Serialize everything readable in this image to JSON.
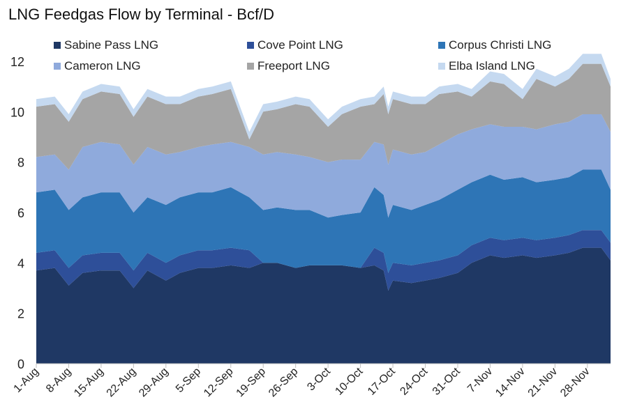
{
  "chart_data": {
    "type": "area",
    "stacked": true,
    "title": "LNG Feedgas Flow by Terminal - Bcf/D",
    "xlabel": "",
    "ylabel": "",
    "ylim": [
      0,
      12
    ],
    "yticks": [
      0,
      2,
      4,
      6,
      8,
      10,
      12
    ],
    "xlim": [
      "1-Aug",
      "3-Dec"
    ],
    "x_tick_labels": [
      "1-Aug",
      "8-Aug",
      "15-Aug",
      "22-Aug",
      "29-Aug",
      "5-Sep",
      "12-Sep",
      "19-Sep",
      "26-Sep",
      "3-Oct",
      "10-Oct",
      "17-Oct",
      "24-Oct",
      "31-Oct",
      "7-Nov",
      "14-Nov",
      "21-Nov",
      "28-Nov"
    ],
    "grid": false,
    "legend_placement": "top",
    "series": [
      {
        "name": "Sabine Pass LNG",
        "color": "#1f3864",
        "points": [
          [
            "1-Aug",
            3.7
          ],
          [
            "5-Aug",
            3.8
          ],
          [
            "8-Aug",
            3.1
          ],
          [
            "11-Aug",
            3.6
          ],
          [
            "15-Aug",
            3.7
          ],
          [
            "19-Aug",
            3.7
          ],
          [
            "22-Aug",
            3.0
          ],
          [
            "25-Aug",
            3.7
          ],
          [
            "29-Aug",
            3.3
          ],
          [
            "1-Sep",
            3.6
          ],
          [
            "5-Sep",
            3.8
          ],
          [
            "8-Sep",
            3.8
          ],
          [
            "12-Sep",
            3.9
          ],
          [
            "16-Sep",
            3.8
          ],
          [
            "19-Sep",
            4.0
          ],
          [
            "22-Sep",
            4.0
          ],
          [
            "26-Sep",
            3.8
          ],
          [
            "29-Sep",
            3.9
          ],
          [
            "3-Oct",
            3.9
          ],
          [
            "6-Oct",
            3.9
          ],
          [
            "10-Oct",
            3.8
          ],
          [
            "13-Oct",
            3.9
          ],
          [
            "15-Oct",
            3.7
          ],
          [
            "16-Oct",
            2.9
          ],
          [
            "17-Oct",
            3.3
          ],
          [
            "21-Oct",
            3.2
          ],
          [
            "24-Oct",
            3.3
          ],
          [
            "27-Oct",
            3.4
          ],
          [
            "31-Oct",
            3.6
          ],
          [
            "3-Nov",
            4.0
          ],
          [
            "7-Nov",
            4.3
          ],
          [
            "10-Nov",
            4.2
          ],
          [
            "14-Nov",
            4.3
          ],
          [
            "17-Nov",
            4.2
          ],
          [
            "21-Nov",
            4.3
          ],
          [
            "24-Nov",
            4.4
          ],
          [
            "27-Nov",
            4.6
          ],
          [
            "1-Dec",
            4.6
          ],
          [
            "3-Dec",
            4.1
          ]
        ]
      },
      {
        "name": "Cove Point LNG",
        "color": "#2e4f99",
        "points": [
          [
            "1-Aug",
            0.7
          ],
          [
            "5-Aug",
            0.7
          ],
          [
            "8-Aug",
            0.7
          ],
          [
            "11-Aug",
            0.7
          ],
          [
            "15-Aug",
            0.7
          ],
          [
            "19-Aug",
            0.7
          ],
          [
            "22-Aug",
            0.7
          ],
          [
            "25-Aug",
            0.7
          ],
          [
            "29-Aug",
            0.7
          ],
          [
            "1-Sep",
            0.7
          ],
          [
            "5-Sep",
            0.7
          ],
          [
            "8-Sep",
            0.7
          ],
          [
            "12-Sep",
            0.7
          ],
          [
            "16-Sep",
            0.7
          ],
          [
            "19-Sep",
            0.0
          ],
          [
            "22-Sep",
            0.0
          ],
          [
            "26-Sep",
            0.0
          ],
          [
            "29-Sep",
            0.0
          ],
          [
            "3-Oct",
            0.0
          ],
          [
            "6-Oct",
            0.0
          ],
          [
            "10-Oct",
            0.0
          ],
          [
            "13-Oct",
            0.7
          ],
          [
            "15-Oct",
            0.7
          ],
          [
            "16-Oct",
            0.7
          ],
          [
            "17-Oct",
            0.7
          ],
          [
            "21-Oct",
            0.7
          ],
          [
            "24-Oct",
            0.7
          ],
          [
            "27-Oct",
            0.7
          ],
          [
            "31-Oct",
            0.7
          ],
          [
            "3-Nov",
            0.7
          ],
          [
            "7-Nov",
            0.7
          ],
          [
            "10-Nov",
            0.7
          ],
          [
            "14-Nov",
            0.7
          ],
          [
            "17-Nov",
            0.7
          ],
          [
            "21-Nov",
            0.7
          ],
          [
            "24-Nov",
            0.7
          ],
          [
            "27-Nov",
            0.7
          ],
          [
            "1-Dec",
            0.7
          ],
          [
            "3-Dec",
            0.7
          ]
        ]
      },
      {
        "name": "Corpus Christi LNG",
        "color": "#2e75b6",
        "points": [
          [
            "1-Aug",
            2.4
          ],
          [
            "5-Aug",
            2.4
          ],
          [
            "8-Aug",
            2.3
          ],
          [
            "11-Aug",
            2.3
          ],
          [
            "15-Aug",
            2.4
          ],
          [
            "19-Aug",
            2.4
          ],
          [
            "22-Aug",
            2.3
          ],
          [
            "25-Aug",
            2.2
          ],
          [
            "29-Aug",
            2.3
          ],
          [
            "1-Sep",
            2.3
          ],
          [
            "5-Sep",
            2.3
          ],
          [
            "8-Sep",
            2.3
          ],
          [
            "12-Sep",
            2.4
          ],
          [
            "16-Sep",
            2.1
          ],
          [
            "19-Sep",
            2.1
          ],
          [
            "22-Sep",
            2.2
          ],
          [
            "26-Sep",
            2.3
          ],
          [
            "29-Sep",
            2.2
          ],
          [
            "3-Oct",
            1.9
          ],
          [
            "6-Oct",
            2.0
          ],
          [
            "10-Oct",
            2.2
          ],
          [
            "13-Oct",
            2.4
          ],
          [
            "15-Oct",
            2.3
          ],
          [
            "16-Oct",
            2.2
          ],
          [
            "17-Oct",
            2.3
          ],
          [
            "21-Oct",
            2.2
          ],
          [
            "24-Oct",
            2.3
          ],
          [
            "27-Oct",
            2.4
          ],
          [
            "31-Oct",
            2.6
          ],
          [
            "3-Nov",
            2.5
          ],
          [
            "7-Nov",
            2.5
          ],
          [
            "10-Nov",
            2.4
          ],
          [
            "14-Nov",
            2.4
          ],
          [
            "17-Nov",
            2.3
          ],
          [
            "21-Nov",
            2.3
          ],
          [
            "24-Nov",
            2.3
          ],
          [
            "27-Nov",
            2.4
          ],
          [
            "1-Dec",
            2.4
          ],
          [
            "3-Dec",
            2.1
          ]
        ]
      },
      {
        "name": "Cameron LNG",
        "color": "#8faadc",
        "points": [
          [
            "1-Aug",
            1.4
          ],
          [
            "5-Aug",
            1.4
          ],
          [
            "8-Aug",
            1.6
          ],
          [
            "11-Aug",
            2.0
          ],
          [
            "15-Aug",
            2.0
          ],
          [
            "19-Aug",
            1.9
          ],
          [
            "22-Aug",
            1.9
          ],
          [
            "25-Aug",
            2.0
          ],
          [
            "29-Aug",
            2.0
          ],
          [
            "1-Sep",
            1.8
          ],
          [
            "5-Sep",
            1.8
          ],
          [
            "8-Sep",
            1.9
          ],
          [
            "12-Sep",
            1.8
          ],
          [
            "16-Sep",
            2.0
          ],
          [
            "19-Sep",
            2.2
          ],
          [
            "22-Sep",
            2.2
          ],
          [
            "26-Sep",
            2.2
          ],
          [
            "29-Sep",
            2.1
          ],
          [
            "3-Oct",
            2.2
          ],
          [
            "6-Oct",
            2.2
          ],
          [
            "10-Oct",
            2.1
          ],
          [
            "13-Oct",
            1.8
          ],
          [
            "15-Oct",
            2.0
          ],
          [
            "16-Oct",
            2.1
          ],
          [
            "17-Oct",
            2.2
          ],
          [
            "21-Oct",
            2.2
          ],
          [
            "24-Oct",
            2.1
          ],
          [
            "27-Oct",
            2.2
          ],
          [
            "31-Oct",
            2.2
          ],
          [
            "3-Nov",
            2.1
          ],
          [
            "7-Nov",
            2.0
          ],
          [
            "10-Nov",
            2.1
          ],
          [
            "14-Nov",
            2.0
          ],
          [
            "17-Nov",
            2.1
          ],
          [
            "21-Nov",
            2.2
          ],
          [
            "24-Nov",
            2.2
          ],
          [
            "27-Nov",
            2.2
          ],
          [
            "1-Dec",
            2.2
          ],
          [
            "3-Dec",
            2.3
          ]
        ]
      },
      {
        "name": "Freeport LNG",
        "color": "#a5a5a5",
        "points": [
          [
            "1-Aug",
            2.0
          ],
          [
            "5-Aug",
            2.0
          ],
          [
            "8-Aug",
            1.9
          ],
          [
            "11-Aug",
            1.9
          ],
          [
            "15-Aug",
            2.0
          ],
          [
            "19-Aug",
            2.0
          ],
          [
            "22-Aug",
            1.9
          ],
          [
            "25-Aug",
            2.0
          ],
          [
            "29-Aug",
            2.0
          ],
          [
            "1-Sep",
            1.9
          ],
          [
            "5-Sep",
            2.0
          ],
          [
            "8-Sep",
            2.0
          ],
          [
            "12-Sep",
            2.1
          ],
          [
            "16-Sep",
            0.3
          ],
          [
            "19-Sep",
            1.7
          ],
          [
            "22-Sep",
            1.7
          ],
          [
            "26-Sep",
            2.0
          ],
          [
            "29-Sep",
            2.0
          ],
          [
            "3-Oct",
            1.4
          ],
          [
            "6-Oct",
            1.8
          ],
          [
            "10-Oct",
            2.1
          ],
          [
            "13-Oct",
            1.5
          ],
          [
            "15-Oct",
            2.0
          ],
          [
            "16-Oct",
            2.0
          ],
          [
            "17-Oct",
            2.0
          ],
          [
            "21-Oct",
            2.0
          ],
          [
            "24-Oct",
            1.9
          ],
          [
            "27-Oct",
            2.0
          ],
          [
            "31-Oct",
            1.7
          ],
          [
            "3-Nov",
            1.3
          ],
          [
            "7-Nov",
            1.7
          ],
          [
            "10-Nov",
            1.7
          ],
          [
            "14-Nov",
            1.1
          ],
          [
            "17-Nov",
            2.0
          ],
          [
            "21-Nov",
            1.5
          ],
          [
            "24-Nov",
            1.7
          ],
          [
            "27-Nov",
            2.0
          ],
          [
            "1-Dec",
            2.0
          ],
          [
            "3-Dec",
            1.8
          ]
        ]
      },
      {
        "name": "Elba Island LNG",
        "color": "#c5d9f0",
        "points": [
          [
            "1-Aug",
            0.3
          ],
          [
            "5-Aug",
            0.3
          ],
          [
            "8-Aug",
            0.3
          ],
          [
            "11-Aug",
            0.3
          ],
          [
            "15-Aug",
            0.3
          ],
          [
            "19-Aug",
            0.3
          ],
          [
            "22-Aug",
            0.3
          ],
          [
            "25-Aug",
            0.3
          ],
          [
            "29-Aug",
            0.3
          ],
          [
            "1-Sep",
            0.3
          ],
          [
            "5-Sep",
            0.3
          ],
          [
            "8-Sep",
            0.3
          ],
          [
            "12-Sep",
            0.3
          ],
          [
            "16-Sep",
            0.3
          ],
          [
            "19-Sep",
            0.3
          ],
          [
            "22-Sep",
            0.3
          ],
          [
            "26-Sep",
            0.3
          ],
          [
            "29-Sep",
            0.3
          ],
          [
            "3-Oct",
            0.3
          ],
          [
            "6-Oct",
            0.3
          ],
          [
            "10-Oct",
            0.3
          ],
          [
            "13-Oct",
            0.3
          ],
          [
            "15-Oct",
            0.3
          ],
          [
            "16-Oct",
            0.3
          ],
          [
            "17-Oct",
            0.3
          ],
          [
            "21-Oct",
            0.3
          ],
          [
            "24-Oct",
            0.3
          ],
          [
            "27-Oct",
            0.3
          ],
          [
            "31-Oct",
            0.3
          ],
          [
            "3-Nov",
            0.3
          ],
          [
            "7-Nov",
            0.4
          ],
          [
            "10-Nov",
            0.4
          ],
          [
            "14-Nov",
            0.4
          ],
          [
            "17-Nov",
            0.4
          ],
          [
            "21-Nov",
            0.4
          ],
          [
            "24-Nov",
            0.4
          ],
          [
            "27-Nov",
            0.4
          ],
          [
            "1-Dec",
            0.4
          ],
          [
            "3-Dec",
            0.3
          ]
        ]
      }
    ]
  }
}
